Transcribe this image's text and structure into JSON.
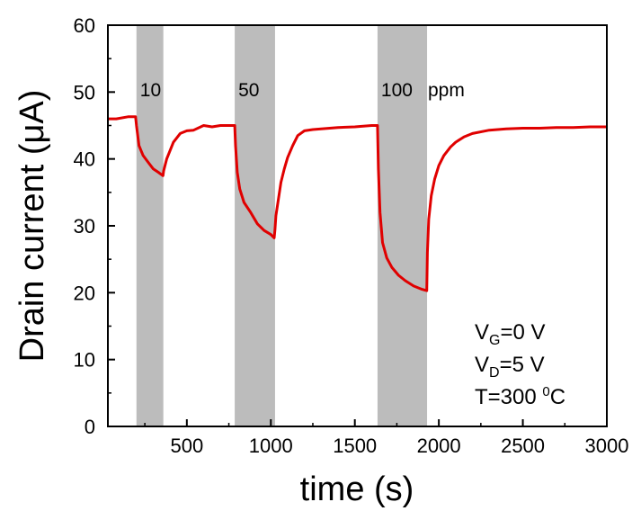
{
  "chart_data": {
    "type": "line",
    "xlabel": "time (s)",
    "ylabel": "Drain current (μA)",
    "xlim": [
      30,
      3000
    ],
    "ylim": [
      0,
      60
    ],
    "x_ticks": [
      500,
      1000,
      1500,
      2000,
      2500,
      3000
    ],
    "x_tick_labels": [
      "500",
      "1000",
      "1500",
      "2000",
      "2500",
      "3000"
    ],
    "y_ticks": [
      0,
      10,
      20,
      30,
      40,
      50,
      60
    ],
    "y_tick_labels": [
      "0",
      "10",
      "20",
      "30",
      "40",
      "50",
      "60"
    ],
    "series_color": "#e00000",
    "shade_color": "#bcbcbc",
    "exposure_windows": [
      {
        "start": 200,
        "end": 360,
        "label": "10"
      },
      {
        "start": 785,
        "end": 1025,
        "label": "50"
      },
      {
        "start": 1635,
        "end": 1930,
        "label": "100"
      }
    ],
    "unit_label": "ppm",
    "conditions": {
      "vg": {
        "var": "V",
        "sub": "G",
        "rest": "=0 V"
      },
      "vd": {
        "var": "V",
        "sub": "D",
        "rest": "=5 V"
      },
      "t": {
        "base": "T=300 ",
        "sup": "0",
        "unit": "C"
      }
    },
    "series": [
      {
        "x": [
          30,
          80,
          150,
          195,
          200,
          215,
          240,
          270,
          300,
          330,
          358,
          362,
          380,
          420,
          460,
          500,
          540,
          600,
          650,
          700,
          750,
          785,
          790,
          800,
          815,
          840,
          880,
          920,
          960,
          1000,
          1020,
          1025,
          1030,
          1045,
          1060,
          1080,
          1100,
          1130,
          1160,
          1200,
          1250,
          1300,
          1400,
          1500,
          1600,
          1635,
          1640,
          1650,
          1665,
          1690,
          1720,
          1760,
          1800,
          1850,
          1900,
          1928,
          1932,
          1940,
          1955,
          1975,
          2000,
          2030,
          2070,
          2100,
          2150,
          2200,
          2300,
          2400,
          2500,
          2600,
          2700,
          2800,
          2900,
          3000
        ],
        "y": [
          46.0,
          46.0,
          46.3,
          46.3,
          45.0,
          42.0,
          40.5,
          39.5,
          38.5,
          38.0,
          37.5,
          38.2,
          40.0,
          42.5,
          43.8,
          44.2,
          44.3,
          45.0,
          44.8,
          45.0,
          45.0,
          45.0,
          42.0,
          38.0,
          35.5,
          33.5,
          32.0,
          30.3,
          29.3,
          28.7,
          28.2,
          29.5,
          31.5,
          34.0,
          36.5,
          38.5,
          40.2,
          42.0,
          43.5,
          44.2,
          44.4,
          44.5,
          44.7,
          44.8,
          45.0,
          45.0,
          38.5,
          32.0,
          27.5,
          25.2,
          23.8,
          22.6,
          21.8,
          21.0,
          20.5,
          20.3,
          26.0,
          31.0,
          34.5,
          37.0,
          39.0,
          40.5,
          41.8,
          42.5,
          43.3,
          43.8,
          44.3,
          44.5,
          44.6,
          44.6,
          44.7,
          44.7,
          44.8,
          44.8
        ]
      }
    ]
  }
}
